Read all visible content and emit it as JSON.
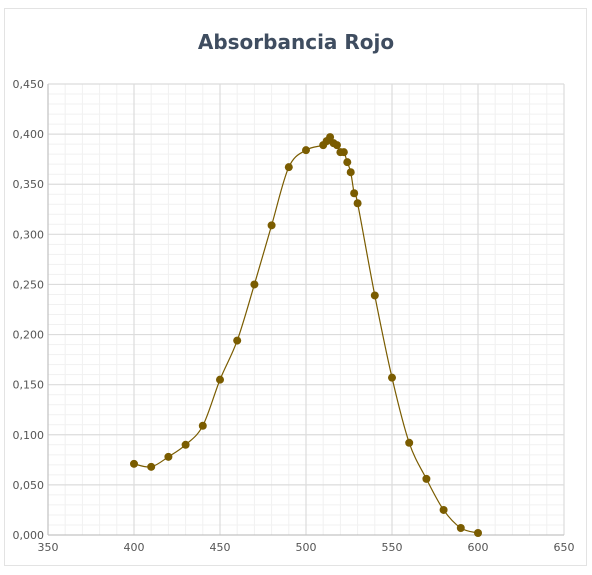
{
  "chart_data": {
    "type": "line",
    "title": "Absorbancia Rojo",
    "xlabel": "",
    "ylabel": "",
    "xlim": [
      350,
      650
    ],
    "ylim": [
      0,
      0.45
    ],
    "x_ticks": [
      "350",
      "400",
      "450",
      "500",
      "550",
      "600",
      "650"
    ],
    "y_ticks": [
      "0,000",
      "0,050",
      "0,100",
      "0,150",
      "0,200",
      "0,250",
      "0,300",
      "0,350",
      "0,400",
      "0,450"
    ],
    "grid": true,
    "legend": "none",
    "series": [
      {
        "color": "#7a5c00",
        "points": [
          [
            400,
            0.071
          ],
          [
            410,
            0.068
          ],
          [
            420,
            0.078
          ],
          [
            430,
            0.09
          ],
          [
            440,
            0.109
          ],
          [
            450,
            0.155
          ],
          [
            460,
            0.194
          ],
          [
            470,
            0.25
          ],
          [
            480,
            0.309
          ],
          [
            490,
            0.367
          ],
          [
            500,
            0.384
          ],
          [
            510,
            0.389
          ],
          [
            512,
            0.393
          ],
          [
            514,
            0.397
          ],
          [
            516,
            0.391
          ],
          [
            518,
            0.389
          ],
          [
            520,
            0.382
          ],
          [
            522,
            0.382
          ],
          [
            524,
            0.372
          ],
          [
            526,
            0.362
          ],
          [
            528,
            0.341
          ],
          [
            530,
            0.331
          ],
          [
            540,
            0.239
          ],
          [
            550,
            0.157
          ],
          [
            560,
            0.092
          ],
          [
            570,
            0.056
          ],
          [
            580,
            0.025
          ],
          [
            590,
            0.007
          ],
          [
            600,
            0.002
          ]
        ]
      }
    ]
  }
}
